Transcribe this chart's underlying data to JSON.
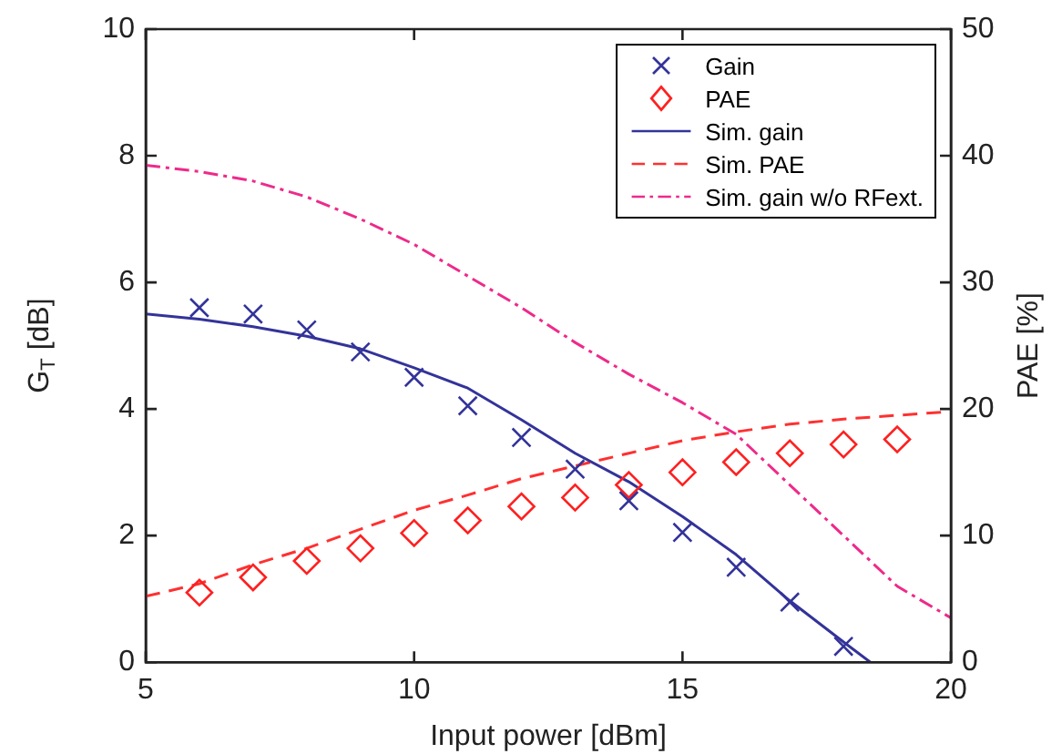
{
  "chart_data": {
    "type": "line",
    "xlabel": "Input power [dBm]",
    "ylabel": "G$_{T}$ [dB]",
    "y2label": "PAE [%]",
    "xlim": [
      5,
      20
    ],
    "xticks": [
      5,
      10,
      15,
      20
    ],
    "ylim": [
      0,
      10
    ],
    "yticks": [
      0,
      2,
      4,
      6,
      8,
      10
    ],
    "y2lim": [
      0,
      50
    ],
    "y2ticks": [
      0,
      10,
      20,
      30,
      40,
      50
    ],
    "grid": false,
    "legend": "top right",
    "series": [
      {
        "name": "Gain",
        "type": "scatter",
        "marker": "cross",
        "color": "#33339a",
        "x": [
          6,
          7,
          8,
          9,
          10,
          11,
          12,
          13,
          14,
          15,
          16,
          17,
          18
        ],
        "values": [
          5.6,
          5.5,
          5.25,
          4.9,
          4.5,
          4.05,
          3.55,
          3.05,
          2.55,
          2.05,
          1.5,
          0.95,
          0.25
        ]
      },
      {
        "name": "PAE",
        "type": "scatter",
        "marker": "diamond",
        "color": "#ff2020",
        "axis": "y2",
        "x": [
          6,
          7,
          8,
          9,
          10,
          11,
          12,
          13,
          14,
          15,
          16,
          17,
          18,
          19
        ],
        "values": [
          5.5,
          6.7,
          8,
          9,
          10.2,
          11.2,
          12.3,
          13,
          14,
          15,
          15.8,
          16.5,
          17.2,
          17.6
        ]
      },
      {
        "name": "Sim. gain",
        "type": "line",
        "line_style": "solid",
        "color": "#33339a",
        "x": [
          5,
          6,
          7,
          8,
          9,
          10,
          11,
          12,
          13,
          14,
          15,
          16,
          17,
          18,
          18.5
        ],
        "values": [
          5.5,
          5.42,
          5.3,
          5.15,
          4.95,
          4.65,
          4.33,
          3.83,
          3.3,
          2.85,
          2.3,
          1.7,
          0.97,
          0.32,
          0
        ]
      },
      {
        "name": "Sim. PAE",
        "type": "line",
        "line_style": "dashed",
        "color": "#ff3030",
        "axis": "y2",
        "x": [
          5,
          6,
          7,
          8,
          9,
          10,
          11,
          12,
          13,
          14,
          15,
          16,
          17,
          18,
          19,
          20
        ],
        "values": [
          5.2,
          6.2,
          7.7,
          9,
          10.5,
          12,
          13.2,
          14.5,
          15.5,
          16.5,
          17.5,
          18.2,
          18.8,
          19.2,
          19.5,
          19.8
        ]
      },
      {
        "name": "Sim. gain w/o RFext.",
        "type": "line",
        "line_style": "dashdot",
        "color": "#ee2a8a",
        "x": [
          5,
          6,
          7,
          8,
          9,
          10,
          11,
          12,
          13,
          14,
          15,
          16,
          17,
          18,
          19,
          20
        ],
        "values": [
          7.85,
          7.75,
          7.6,
          7.35,
          7.0,
          6.6,
          6.1,
          5.6,
          5.05,
          4.55,
          4.1,
          3.6,
          2.8,
          2.0,
          1.2,
          0.7
        ]
      }
    ]
  }
}
